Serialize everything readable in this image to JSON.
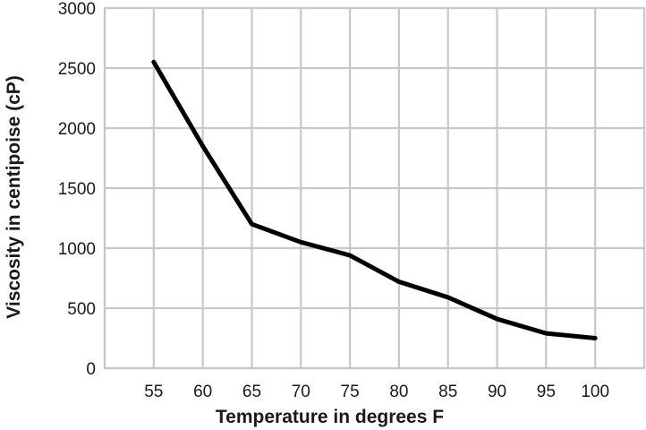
{
  "chart_data": {
    "type": "line",
    "title": "",
    "xlabel": "Temperature in degrees F",
    "ylabel": "Viscosity in centipoise (cP)",
    "x": [
      55,
      60,
      65,
      70,
      75,
      80,
      85,
      90,
      95,
      100
    ],
    "series": [
      {
        "values": [
          2550,
          1850,
          1200,
          1050,
          940,
          720,
          590,
          410,
          290,
          250
        ],
        "color": "#000000"
      }
    ],
    "xticks": [
      "55",
      "60",
      "65",
      "70",
      "75",
      "80",
      "85",
      "90",
      "95",
      "100"
    ],
    "yticks": [
      "0",
      "500",
      "1000",
      "1500",
      "2000",
      "2500",
      "3000"
    ],
    "xlim": [
      50,
      105
    ],
    "ylim": [
      0,
      3000
    ],
    "grid": true,
    "legend": "none"
  }
}
